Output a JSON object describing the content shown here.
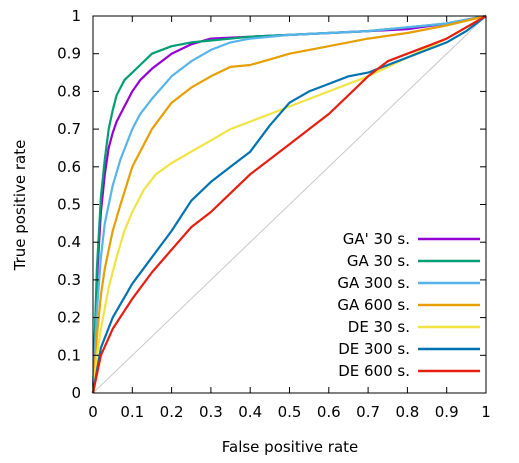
{
  "chart_data": {
    "type": "line",
    "title": "",
    "xlabel": "False positive rate",
    "ylabel": "True positive rate",
    "xlim": [
      0,
      1
    ],
    "ylim": [
      0,
      1
    ],
    "xticks": [
      "0",
      "0.1",
      "0.2",
      "0.3",
      "0.4",
      "0.5",
      "0.6",
      "0.7",
      "0.8",
      "0.9",
      "1"
    ],
    "yticks": [
      "0",
      "0.1",
      "0.2",
      "0.3",
      "0.4",
      "0.5",
      "0.6",
      "0.7",
      "0.8",
      "0.9",
      "1"
    ],
    "grid": false,
    "legend_position": "bottom-right",
    "diagonal_reference": {
      "x": [
        0,
        1
      ],
      "y": [
        0,
        1
      ],
      "color": "#c8c8c8"
    },
    "series": [
      {
        "name": "GA' 30 s.",
        "color": "#9400d3",
        "x": [
          0,
          0.01,
          0.02,
          0.03,
          0.04,
          0.05,
          0.06,
          0.08,
          0.1,
          0.12,
          0.15,
          0.2,
          0.25,
          0.3,
          0.4,
          0.5,
          0.6,
          0.7,
          0.8,
          0.9,
          1
        ],
        "y": [
          0,
          0.3,
          0.48,
          0.58,
          0.65,
          0.69,
          0.72,
          0.76,
          0.8,
          0.83,
          0.86,
          0.9,
          0.925,
          0.94,
          0.945,
          0.95,
          0.955,
          0.96,
          0.965,
          0.98,
          1
        ]
      },
      {
        "name": "GA 30 s.",
        "color": "#009e73",
        "x": [
          0,
          0.01,
          0.02,
          0.03,
          0.04,
          0.05,
          0.06,
          0.08,
          0.1,
          0.12,
          0.15,
          0.2,
          0.25,
          0.3,
          0.4,
          0.5,
          0.6,
          0.7,
          0.8,
          0.9,
          1
        ],
        "y": [
          0,
          0.33,
          0.52,
          0.62,
          0.7,
          0.75,
          0.79,
          0.83,
          0.85,
          0.87,
          0.9,
          0.92,
          0.93,
          0.935,
          0.945,
          0.95,
          0.955,
          0.96,
          0.97,
          0.98,
          1
        ]
      },
      {
        "name": "GA 300 s.",
        "color": "#56b4e9",
        "x": [
          0,
          0.01,
          0.02,
          0.03,
          0.05,
          0.07,
          0.1,
          0.12,
          0.15,
          0.2,
          0.25,
          0.3,
          0.35,
          0.4,
          0.5,
          0.6,
          0.7,
          0.8,
          0.9,
          1
        ],
        "y": [
          0,
          0.22,
          0.36,
          0.45,
          0.55,
          0.62,
          0.7,
          0.74,
          0.78,
          0.84,
          0.88,
          0.91,
          0.93,
          0.94,
          0.95,
          0.955,
          0.96,
          0.97,
          0.98,
          1
        ]
      },
      {
        "name": "GA 600 s.",
        "color": "#e69f00",
        "x": [
          0,
          0.01,
          0.02,
          0.03,
          0.05,
          0.07,
          0.1,
          0.15,
          0.2,
          0.25,
          0.3,
          0.35,
          0.4,
          0.45,
          0.5,
          0.6,
          0.7,
          0.8,
          0.9,
          1
        ],
        "y": [
          0,
          0.15,
          0.26,
          0.33,
          0.43,
          0.5,
          0.6,
          0.7,
          0.77,
          0.81,
          0.84,
          0.865,
          0.87,
          0.885,
          0.9,
          0.92,
          0.94,
          0.955,
          0.975,
          1
        ]
      },
      {
        "name": "DE 30 s.",
        "color": "#f0e442",
        "x": [
          0,
          0.01,
          0.02,
          0.04,
          0.06,
          0.08,
          0.1,
          0.13,
          0.16,
          0.2,
          0.25,
          0.3,
          0.35,
          0.4,
          0.5,
          0.6,
          0.7,
          0.8,
          0.9,
          1
        ],
        "y": [
          0,
          0.1,
          0.17,
          0.28,
          0.36,
          0.43,
          0.48,
          0.54,
          0.58,
          0.61,
          0.64,
          0.67,
          0.7,
          0.72,
          0.76,
          0.8,
          0.84,
          0.89,
          0.94,
          1
        ]
      },
      {
        "name": "DE 300 s.",
        "color": "#0072b2",
        "x": [
          0,
          0.02,
          0.05,
          0.1,
          0.15,
          0.2,
          0.25,
          0.3,
          0.35,
          0.4,
          0.45,
          0.5,
          0.55,
          0.6,
          0.65,
          0.7,
          0.75,
          0.8,
          0.85,
          0.9,
          0.95,
          1
        ],
        "y": [
          0,
          0.12,
          0.2,
          0.29,
          0.36,
          0.43,
          0.51,
          0.56,
          0.6,
          0.64,
          0.71,
          0.77,
          0.8,
          0.82,
          0.84,
          0.85,
          0.87,
          0.89,
          0.91,
          0.93,
          0.96,
          1
        ]
      },
      {
        "name": "DE 600 s.",
        "color": "#e51e10",
        "x": [
          0,
          0.02,
          0.05,
          0.1,
          0.15,
          0.2,
          0.25,
          0.3,
          0.35,
          0.4,
          0.45,
          0.5,
          0.55,
          0.6,
          0.65,
          0.7,
          0.75,
          0.8,
          0.85,
          0.9,
          0.95,
          1
        ],
        "y": [
          0,
          0.1,
          0.17,
          0.25,
          0.32,
          0.38,
          0.44,
          0.48,
          0.53,
          0.58,
          0.62,
          0.66,
          0.7,
          0.74,
          0.79,
          0.84,
          0.88,
          0.9,
          0.92,
          0.94,
          0.97,
          1
        ]
      }
    ]
  }
}
